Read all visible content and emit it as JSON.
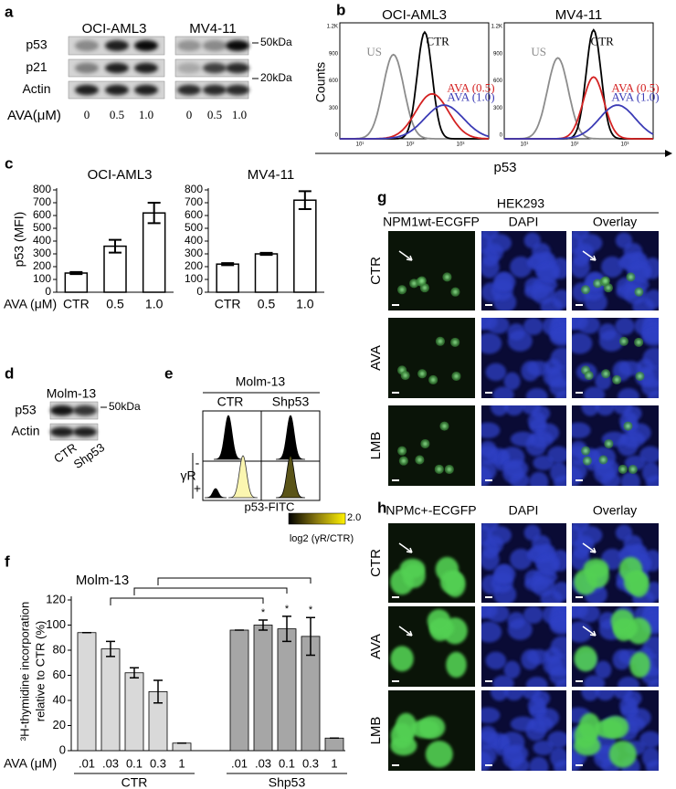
{
  "a": {
    "label": "a",
    "cell_lines": [
      "OCI-AML3",
      "MV4-11"
    ],
    "proteins": [
      "p53",
      "p21",
      "Actin"
    ],
    "markers": [
      "50kDa",
      "20kDa"
    ],
    "dose_label": "AVA(μM)",
    "doses": [
      "0",
      "0.5",
      "1.0"
    ]
  },
  "b": {
    "label": "b",
    "titles": [
      "OCI-AML3",
      "MV4-11"
    ],
    "y_label": "Counts",
    "x_label": "p53",
    "curves": [
      "US",
      "CTR",
      "AVA (0.5)",
      "AVA (1.0)"
    ],
    "curve_colors": [
      "#8c8c8c",
      "#000000",
      "#d42222",
      "#3b3bb5"
    ],
    "yticks": [
      "1.2K",
      "900",
      "600",
      "300",
      "0"
    ],
    "xticks": [
      "10¹",
      "10²",
      "10³"
    ]
  },
  "c": {
    "label": "c",
    "y_label": "p53 (MFI)",
    "x_label": "AVA (μM)",
    "categories": [
      "CTR",
      "0.5",
      "1.0"
    ],
    "ylim": [
      0,
      800
    ],
    "yticks": [
      0,
      100,
      200,
      300,
      400,
      500,
      600,
      700,
      800
    ],
    "charts": [
      {
        "type": "bar",
        "title": "OCI-AML3",
        "values": [
          150,
          360,
          620
        ],
        "errors": [
          8,
          50,
          80
        ]
      },
      {
        "type": "bar",
        "title": "MV4-11",
        "values": [
          220,
          300,
          720
        ],
        "errors": [
          8,
          8,
          70
        ]
      }
    ]
  },
  "d": {
    "label": "d",
    "cell_line": "Molm-13",
    "proteins": [
      "p53",
      "Actin"
    ],
    "marker": "50kDa",
    "lanes": [
      "CTR",
      "Shp53"
    ]
  },
  "e": {
    "label": "e",
    "cell_line": "Molm-13",
    "columns": [
      "CTR",
      "Shp53"
    ],
    "row_label": "γR",
    "rows": [
      "-",
      "+"
    ],
    "x_label": "p53-FITC",
    "colorbar_max": "2.0",
    "colorbar_label": "log2 (γR/CTR)"
  },
  "f": {
    "label": "f",
    "type": "bar",
    "title": "Molm-13",
    "y_label": [
      "³H-thymidine incorporation",
      "relative to CTR (%)"
    ],
    "x_label": "AVA (μM)",
    "categories": [
      ".01",
      ".03",
      "0.1",
      "0.3",
      "1"
    ],
    "ylim": [
      0,
      120
    ],
    "yticks": [
      0,
      20,
      40,
      60,
      80,
      100,
      120
    ],
    "significance": "*",
    "series": [
      {
        "name": "CTR",
        "color": "#d9d9d9",
        "values": [
          94,
          81,
          62,
          47,
          6
        ],
        "errors": [
          0,
          6,
          4,
          9,
          0
        ]
      },
      {
        "name": "Shp53",
        "color": "#a6a6a6",
        "values": [
          96,
          100,
          97,
          91,
          10
        ],
        "errors": [
          0,
          4,
          10,
          15,
          0
        ]
      }
    ]
  },
  "g": {
    "label": "g",
    "cell_line": "HEK293",
    "columns": [
      "NPM1wt-ECGFP",
      "DAPI",
      "Overlay"
    ],
    "rows": [
      "CTR",
      "AVA",
      "LMB"
    ]
  },
  "h": {
    "label": "h",
    "columns": [
      "NPMc+-ECGFP",
      "DAPI",
      "Overlay"
    ],
    "rows": [
      "CTR",
      "AVA",
      "LMB"
    ]
  }
}
